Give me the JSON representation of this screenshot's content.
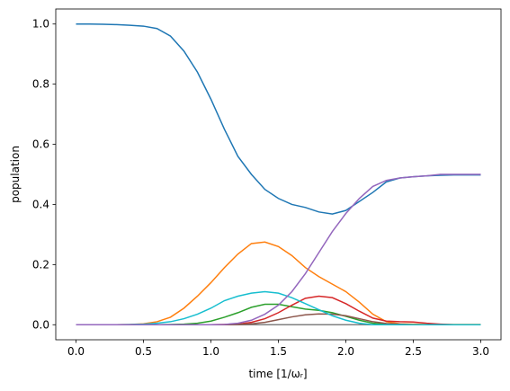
{
  "chart_data": {
    "type": "line",
    "xlabel": "time [1/ωᵣ]",
    "ylabel": "population",
    "x": [
      0,
      0.1,
      0.2,
      0.3,
      0.4,
      0.5,
      0.6,
      0.7,
      0.8,
      0.9,
      1.0,
      1.1,
      1.2,
      1.3,
      1.4,
      1.5,
      1.6,
      1.7,
      1.8,
      1.9,
      2.0,
      2.1,
      2.2,
      2.3,
      2.4,
      2.5,
      2.6,
      2.7,
      2.8,
      2.9,
      3.0
    ],
    "series": [
      {
        "color": "#7f7f7f",
        "values": [
          0,
          0,
          0,
          0,
          0,
          0,
          0,
          0,
          0,
          0,
          0,
          0,
          0,
          0,
          0,
          0,
          0,
          0,
          0,
          0,
          0,
          0,
          0,
          0,
          0,
          0,
          0,
          0,
          0,
          0,
          0
        ]
      },
      {
        "color": "#1f77b4",
        "values": [
          1.0,
          1.0,
          0.999,
          0.998,
          0.996,
          0.993,
          0.985,
          0.96,
          0.91,
          0.84,
          0.75,
          0.65,
          0.56,
          0.5,
          0.45,
          0.42,
          0.4,
          0.39,
          0.375,
          0.368,
          0.38,
          0.41,
          0.44,
          0.475,
          0.488,
          0.492,
          0.495,
          0.497,
          0.498,
          0.498,
          0.498
        ]
      },
      {
        "color": "#ff7f0e",
        "values": [
          0,
          0,
          0,
          0,
          0.001,
          0.003,
          0.01,
          0.025,
          0.055,
          0.095,
          0.14,
          0.19,
          0.235,
          0.27,
          0.275,
          0.26,
          0.23,
          0.19,
          0.16,
          0.135,
          0.11,
          0.075,
          0.035,
          0.01,
          0.003,
          0.002,
          0.001,
          0.001,
          0.001,
          0.001,
          0.001
        ]
      },
      {
        "color": "#2ca02c",
        "values": [
          0,
          0,
          0,
          0,
          0,
          0,
          0,
          0.001,
          0.002,
          0.005,
          0.012,
          0.025,
          0.04,
          0.058,
          0.068,
          0.068,
          0.06,
          0.052,
          0.048,
          0.04,
          0.028,
          0.015,
          0.005,
          0.002,
          0,
          0,
          0,
          0,
          0,
          0,
          0
        ]
      },
      {
        "color": "#d62728",
        "values": [
          0,
          0,
          0,
          0,
          0,
          0,
          0,
          0,
          0,
          0,
          0,
          0.001,
          0.002,
          0.008,
          0.02,
          0.04,
          0.065,
          0.088,
          0.095,
          0.09,
          0.07,
          0.045,
          0.022,
          0.012,
          0.01,
          0.009,
          0.005,
          0.002,
          0,
          0,
          0
        ]
      },
      {
        "color": "#8c564b",
        "values": [
          0,
          0,
          0,
          0,
          0,
          0,
          0,
          0,
          0,
          0,
          0,
          0,
          0.001,
          0.003,
          0.008,
          0.017,
          0.026,
          0.033,
          0.036,
          0.035,
          0.03,
          0.02,
          0.01,
          0.004,
          0.002,
          0,
          0,
          0,
          0,
          0,
          0
        ]
      },
      {
        "color": "#17becf",
        "values": [
          0,
          0,
          0,
          0,
          0.001,
          0.002,
          0.005,
          0.01,
          0.02,
          0.035,
          0.055,
          0.08,
          0.095,
          0.105,
          0.11,
          0.105,
          0.09,
          0.07,
          0.05,
          0.03,
          0.015,
          0.005,
          0,
          0,
          0,
          0,
          0,
          0,
          0,
          0,
          0
        ]
      },
      {
        "color": "#9467bd",
        "values": [
          0,
          0,
          0,
          0,
          0,
          0,
          0,
          0,
          0,
          0,
          0,
          0.001,
          0.005,
          0.015,
          0.035,
          0.065,
          0.11,
          0.17,
          0.24,
          0.31,
          0.37,
          0.42,
          0.46,
          0.48,
          0.488,
          0.492,
          0.495,
          0.5,
          0.5,
          0.5,
          0.5
        ]
      }
    ],
    "xlim": [
      -0.15,
      3.15
    ],
    "ylim": [
      -0.05,
      1.05
    ],
    "xticks": [
      {
        "value": 0,
        "label": "0.0"
      },
      {
        "value": 0.5,
        "label": "0.5"
      },
      {
        "value": 1,
        "label": "1.0"
      },
      {
        "value": 1.5,
        "label": "1.5"
      },
      {
        "value": 2,
        "label": "2.0"
      },
      {
        "value": 2.5,
        "label": "2.5"
      },
      {
        "value": 3,
        "label": "3.0"
      }
    ],
    "yticks": [
      {
        "value": 0,
        "label": "0.0"
      },
      {
        "value": 0.2,
        "label": "0.2"
      },
      {
        "value": 0.4,
        "label": "0.4"
      },
      {
        "value": 0.6,
        "label": "0.6"
      },
      {
        "value": 0.8,
        "label": "0.8"
      },
      {
        "value": 1,
        "label": "1.0"
      }
    ]
  }
}
